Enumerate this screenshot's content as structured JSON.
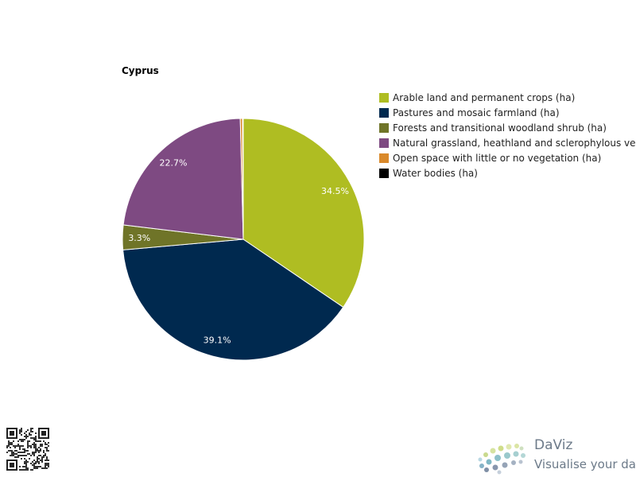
{
  "chart_data": {
    "type": "pie",
    "title": "Cyprus",
    "categories": [
      "Arable land and permanent crops (ha)",
      "Pastures and mosaic farmland (ha)",
      "Forests and transitional woodland shrub (ha)",
      "Natural grassland, heathland and sclerophylous vegetation (ha)",
      "Open space with little or no vegetation (ha)",
      "Water bodies (ha)"
    ],
    "values": [
      34.5,
      39.1,
      3.3,
      22.7,
      0.3,
      0.1
    ],
    "data_labels": [
      "34.5%",
      "39.1%",
      "3.3%",
      "22.7%",
      "",
      ""
    ],
    "colors": [
      "#afbd22",
      "#00294f",
      "#6f7428",
      "#7e4a82",
      "#d9892b",
      "#000000"
    ],
    "legend_placement": "right"
  },
  "branding": {
    "logo_name": "DaViz",
    "logo_tagline": "Visualise your data"
  }
}
